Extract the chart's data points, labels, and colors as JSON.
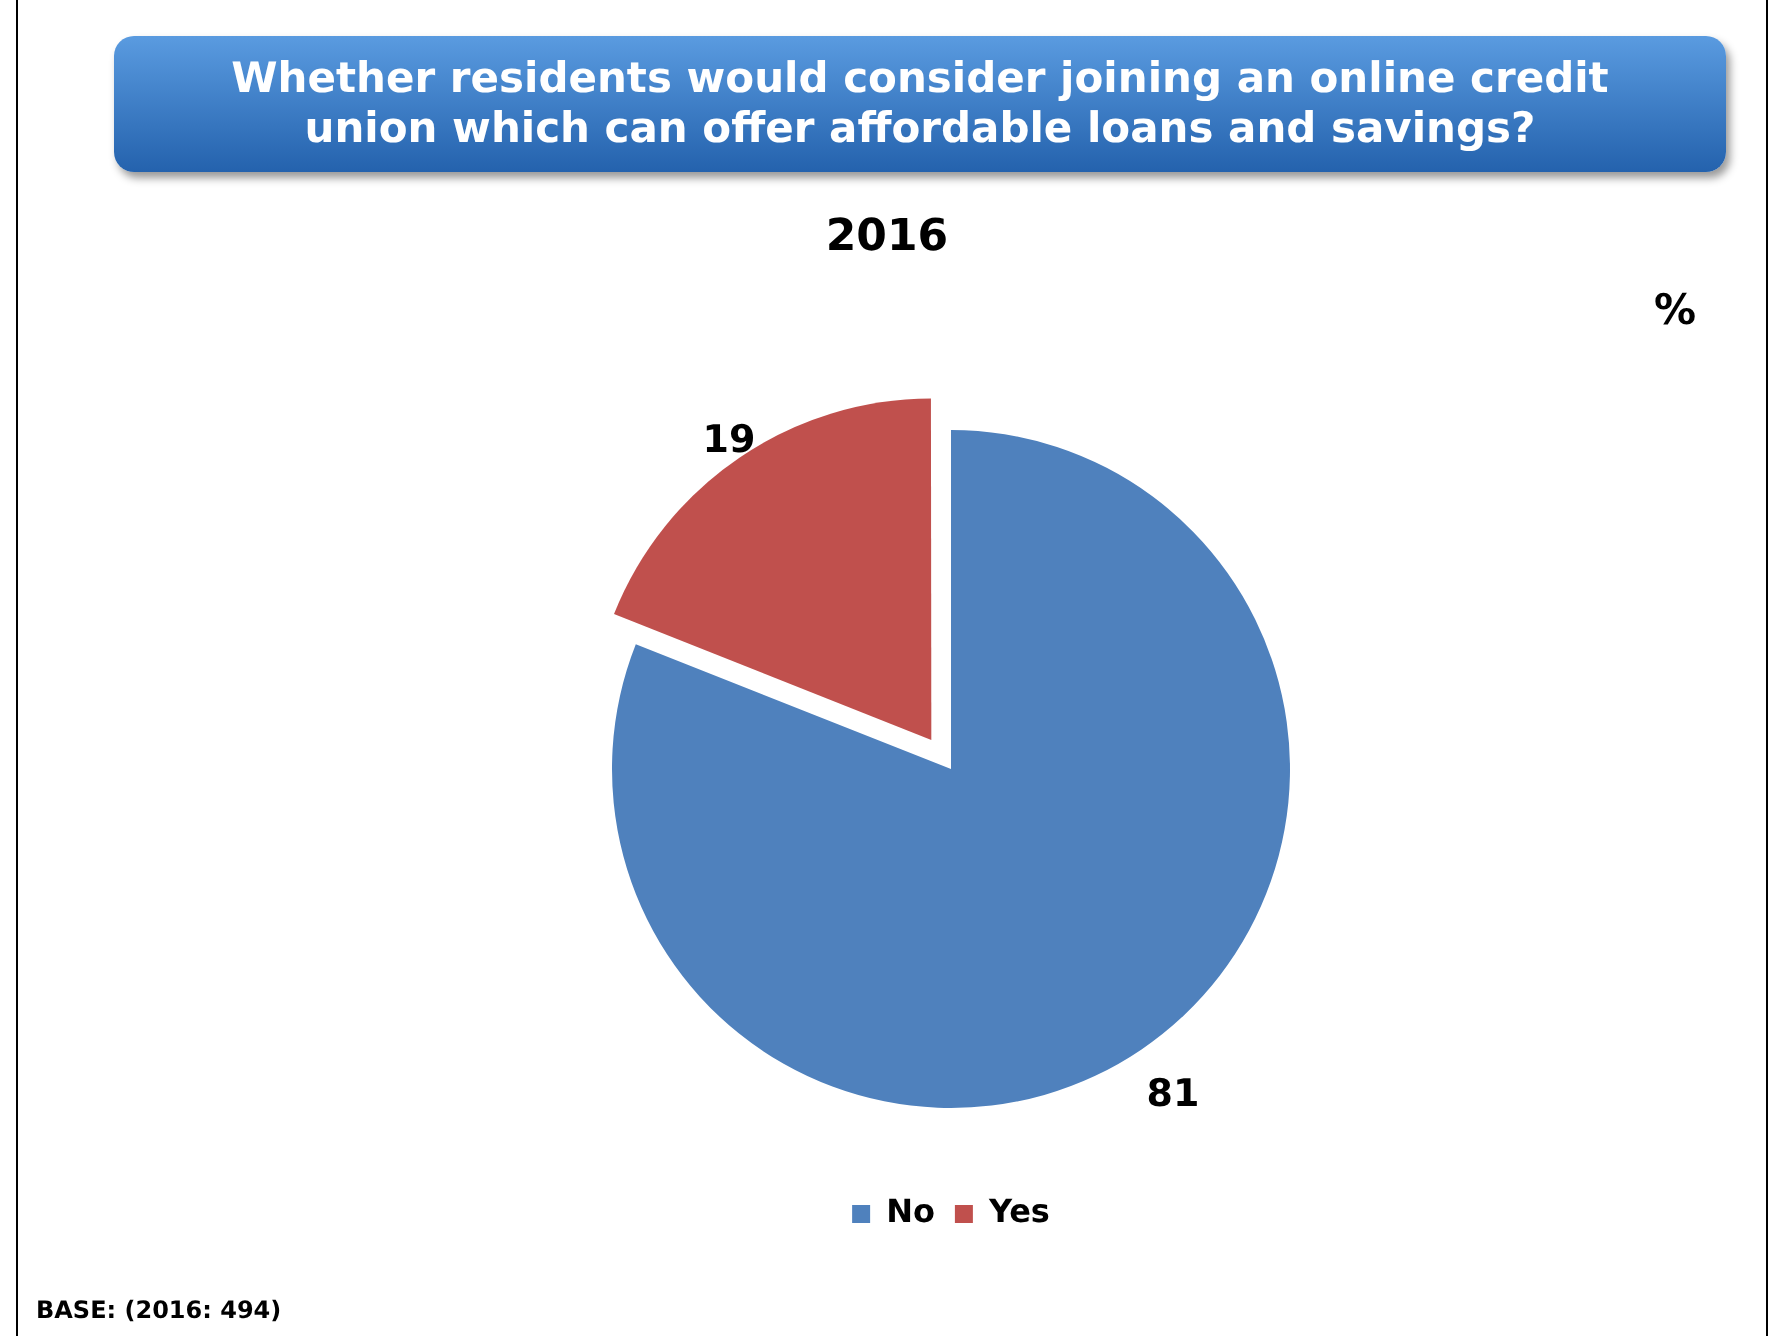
{
  "chart_data": {
    "type": "pie",
    "title": "Whether residents would consider joining an online credit union which can offer affordable loans and savings?",
    "subtitle": "2016",
    "categories": [
      "No",
      "Yes"
    ],
    "values": [
      81,
      19
    ],
    "colors": [
      "#4f81bd",
      "#c0504d"
    ],
    "data_labels": true,
    "legend": "bottom",
    "annotations": [
      "%",
      "BASE: (2016: 494)"
    ]
  }
}
